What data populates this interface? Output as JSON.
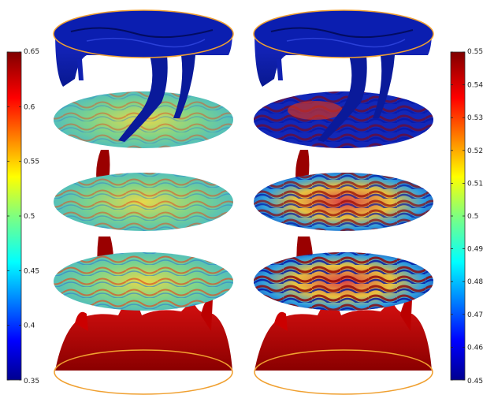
{
  "left_colorbar": {
    "ticks": [
      "0.65",
      "0.6",
      "0.55",
      "0.5",
      "0.45",
      "0.4",
      "0.35"
    ]
  },
  "right_colorbar": {
    "ticks": [
      "0.55",
      "0.54",
      "0.53",
      "0.52",
      "0.51",
      "0.5",
      "0.49",
      "0.48",
      "0.47",
      "0.46",
      "0.45"
    ]
  },
  "colors": {
    "ring": "#f0a030",
    "cold_plume": "#0a1ea0",
    "hot_plume": "#a00000",
    "mid_slice": "#5cc8a0"
  },
  "panels": [
    {
      "name": "left-panel",
      "slices": 3
    },
    {
      "name": "right-panel",
      "slices": 3
    }
  ]
}
